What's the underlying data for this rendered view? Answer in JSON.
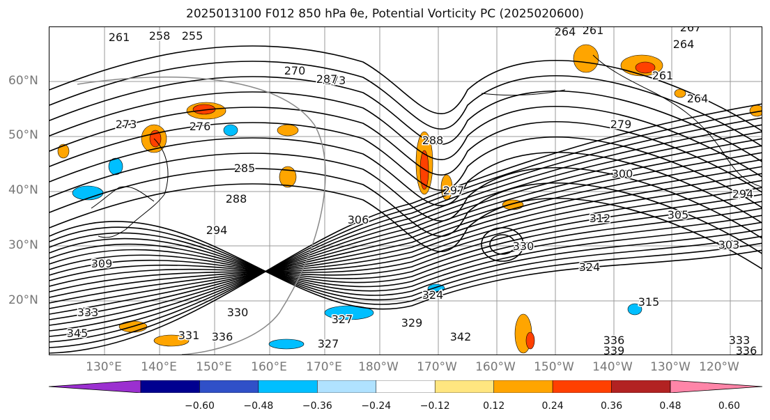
{
  "title": "2025013100 F012 850 hPa θe, Potential Vorticity PC (2025020600)",
  "lat_labels": [
    "60°N",
    "50°N",
    "40°N",
    "30°N",
    "20°N"
  ],
  "lon_labels": [
    "130°E",
    "140°E",
    "150°E",
    "160°E",
    "170°E",
    "180°W",
    "170°W",
    "160°W",
    "150°W",
    "140°W",
    "130°W",
    "120°W"
  ],
  "contour_labels": [
    "261",
    "258",
    "255",
    "264",
    "267",
    "261",
    "264",
    "261",
    "270",
    "273",
    "287",
    "273",
    "276",
    "279",
    "264",
    "288",
    "285",
    "288",
    "297",
    "300",
    "294",
    "294",
    "306",
    "312",
    "309",
    "303",
    "305",
    "330",
    "324",
    "327",
    "330",
    "336",
    "324",
    "329",
    "315",
    "333",
    "336",
    "339",
    "342",
    "345",
    "327",
    "333",
    "336",
    "331"
  ],
  "colorbar": {
    "ticks": [
      "−0.60",
      "−0.48",
      "−0.36",
      "−0.24",
      "−0.12",
      "0.12",
      "0.24",
      "0.36",
      "0.48",
      "0.60"
    ],
    "colors": [
      "#9b30d0",
      "#000090",
      "#3050c8",
      "#00bfff",
      "#b0e2ff",
      "#ffffff",
      "#ffe680",
      "#ffa500",
      "#ff4000",
      "#b22222",
      "#ff85a8"
    ]
  }
}
